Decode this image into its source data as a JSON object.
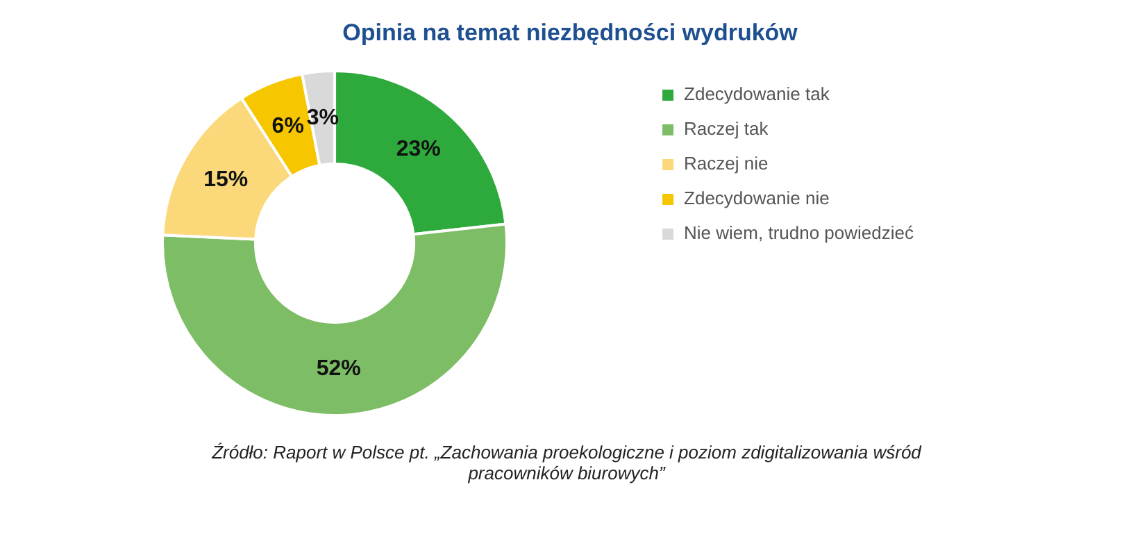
{
  "chart_data": {
    "type": "donut",
    "title": "Opinia na temat niezbędności wydruków",
    "categories": [
      "Zdecydowanie tak",
      "Raczej tak",
      "Raczej nie",
      "Zdecydowanie nie",
      "Nie wiem, trudno powiedzieć"
    ],
    "values": [
      23,
      52,
      15,
      6,
      3
    ],
    "colors": [
      "#2eaa3c",
      "#7dbd66",
      "#fbd97a",
      "#f6c700",
      "#d9d9d9"
    ],
    "value_labels": [
      "23%",
      "52%",
      "15%",
      "6%",
      "3%"
    ],
    "legend": "right",
    "annotations": [
      "Źródło: Raport w Polsce pt. „Zachowania proekologiczne i poziom zdigitalizowania wśród pracowników biurowych”"
    ]
  }
}
